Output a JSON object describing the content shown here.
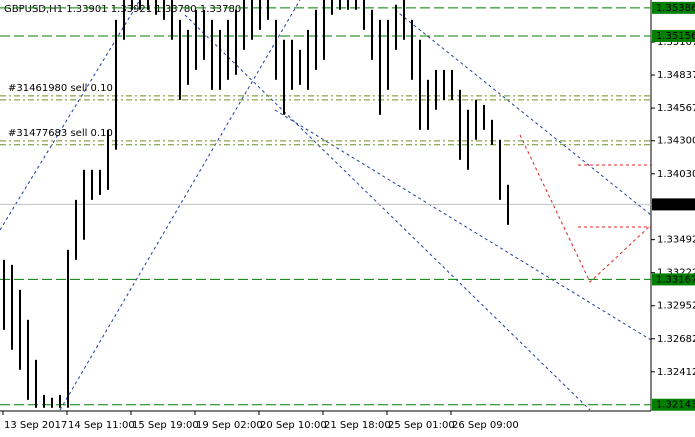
{
  "chart_data": {
    "type": "ohlc",
    "title": "GBPUSD,H1  1.33901 1.33921 1.33780 1.33780",
    "categories": [
      "13 Sep 2017",
      null,
      null,
      null,
      null,
      null,
      null,
      null,
      "14 Sep 11:00",
      null,
      null,
      null,
      null,
      null,
      null,
      null,
      "15 Sep 19:00",
      null,
      null,
      null,
      null,
      null,
      null,
      null,
      "19 Sep 02:00",
      null,
      null,
      null,
      null,
      null,
      null,
      null,
      "20 Sep 10:00",
      null,
      null,
      null,
      null,
      null,
      null,
      null,
      "21 Sep 18:00",
      null,
      null,
      null,
      null,
      null,
      null,
      null,
      "25 Sep 01:00",
      null,
      null,
      null,
      null,
      null,
      null,
      null,
      "26 Sep 09:00",
      null,
      null,
      null,
      null,
      null,
      null,
      null
    ],
    "high": [
      1.33327,
      1.33286,
      1.33082,
      1.32837,
      1.3251,
      1.32224,
      1.322,
      1.32224,
      1.33409,
      1.33817,
      1.34063,
      1.34063,
      1.34063,
      1.34389,
      1.35288,
      1.35451,
      1.35451,
      1.35451,
      1.35451,
      1.35451,
      1.35451,
      1.35451,
      1.35288,
      1.35206,
      1.3537,
      1.3537,
      1.35288,
      1.35206,
      1.35288,
      1.3537,
      1.35451,
      1.35451,
      1.35451,
      1.35451,
      1.35288,
      1.35125,
      1.35125,
      1.35043,
      1.35206,
      1.3537,
      1.35451,
      1.35451,
      1.35451,
      1.35451,
      1.35451,
      1.35451,
      1.3537,
      1.35288,
      1.35288,
      1.35411,
      1.35451,
      1.35288,
      1.35125,
      1.34798,
      1.34879,
      1.34879,
      1.34879,
      1.34716,
      1.34553,
      1.34634,
      1.34593,
      1.34471,
      1.34308,
      1.3394
    ],
    "low": [
      1.32755,
      1.32592,
      1.32429,
      1.32183,
      1.32118,
      1.32118,
      1.32118,
      1.32118,
      1.32118,
      1.33327,
      1.33491,
      1.33817,
      1.33858,
      1.33899,
      1.34226,
      1.35125,
      1.3537,
      1.3537,
      1.3537,
      1.35329,
      1.35288,
      1.35125,
      1.34634,
      1.34757,
      1.34879,
      1.34961,
      1.34716,
      1.34716,
      1.34798,
      1.34839,
      1.35043,
      1.35125,
      1.35206,
      1.35288,
      1.34798,
      1.34512,
      1.34716,
      1.34757,
      1.34716,
      1.34879,
      1.34961,
      1.35329,
      1.3537,
      1.3537,
      1.3537,
      1.35206,
      1.34961,
      1.34512,
      1.34716,
      1.35043,
      1.35125,
      1.34798,
      1.34389,
      1.34389,
      1.34553,
      1.34634,
      1.34634,
      1.34144,
      1.34063,
      1.34308,
      1.34389,
      1.34267,
      1.33817,
      1.33613
    ],
    "color": "#000000",
    "ylim": [
      1.321,
      1.3545
    ],
    "yticks": [
      1.35107,
      1.34837,
      1.34567,
      {
        "value": 1.343,
        "label": "1.34300"
      },
      {
        "value": 1.3403,
        "label": "1.34030"
      },
      1.33492,
      1.33222,
      1.32952,
      1.32682,
      1.32412
    ],
    "levels": [
      1.35386,
      1.35156,
      1.33167,
      1.32143
    ],
    "level_color": "#007f00",
    "current_price": {
      "value": 1.3378,
      "label": "1.33780"
    },
    "orders": [
      {
        "label": "#31461980 sell 0.10",
        "prices": [
          1.34667,
          1.34634
        ]
      },
      {
        "label": "#31477683 sell 0.10",
        "prices": [
          1.34299,
          1.34267
        ]
      }
    ],
    "order_color": "#6b8e23"
  }
}
